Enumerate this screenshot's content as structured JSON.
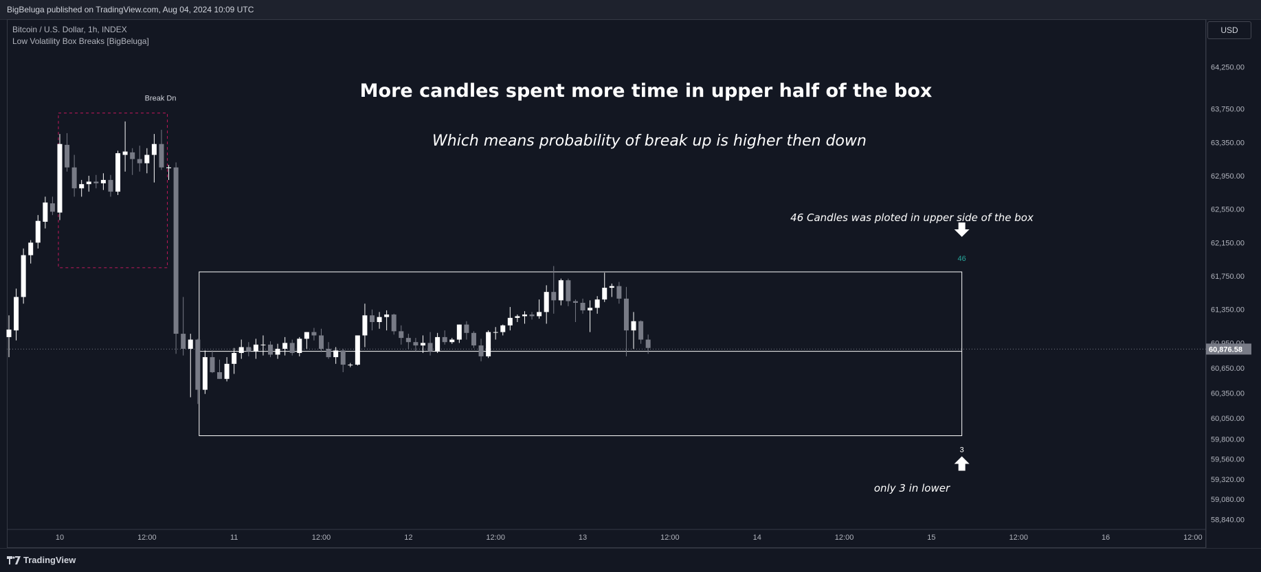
{
  "header": {
    "publisher": "BigBeluga published on TradingView.com, Aug 04, 2024 10:09 UTC"
  },
  "legend": {
    "symbol": "Bitcoin / U.S. Dollar, 1h, INDEX",
    "indicator": "Low Volatility Box Breaks [BigBeluga]"
  },
  "currency_button": "USD",
  "footer": {
    "logo_text": "TradingView"
  },
  "colors": {
    "bg": "#131722",
    "bull": "#ffffff",
    "bear": "#787b86",
    "dashed_box": "#c2185b",
    "count_up": "#26a69a"
  },
  "chart_data": {
    "type": "candlestick",
    "title": "",
    "y_axis": {
      "ylim": [
        58760,
        64560
      ],
      "tick_labels": [
        "64,250.00",
        "63,750.00",
        "63,350.00",
        "62,950.00",
        "62,550.00",
        "62,150.00",
        "61,750.00",
        "61,350.00",
        "60,950.00",
        "60,650.00",
        "60,350.00",
        "60,050.00",
        "59,800.00",
        "59,560.00",
        "59,320.00",
        "59,080.00",
        "58,840.00"
      ],
      "ticks": [
        64250,
        63750,
        63350,
        62950,
        62550,
        62150,
        61750,
        61350,
        60950,
        60650,
        60350,
        60050,
        59800,
        59560,
        59320,
        59080,
        58840
      ]
    },
    "x_axis": {
      "tick_labels": [
        "10",
        "12:00",
        "11",
        "12:00",
        "12",
        "12:00",
        "13",
        "12:00",
        "14",
        "12:00",
        "15",
        "12:00",
        "16",
        "12:00"
      ],
      "tick_bar_index": [
        7,
        19,
        31,
        43,
        55,
        67,
        79,
        91,
        103,
        115,
        127,
        139,
        151,
        163
      ]
    },
    "last_price": 60876.58,
    "last_price_label": "60,876.58",
    "candles": [
      [
        61020,
        61280,
        60780,
        61110
      ],
      [
        61100,
        61600,
        60980,
        61500
      ],
      [
        61500,
        62080,
        61420,
        62000
      ],
      [
        62000,
        62180,
        61900,
        62150
      ],
      [
        62150,
        62480,
        62080,
        62410
      ],
      [
        62400,
        62700,
        62320,
        62630
      ],
      [
        62620,
        62700,
        62480,
        62520
      ],
      [
        62510,
        63450,
        62420,
        63330
      ],
      [
        63320,
        63460,
        63000,
        63050
      ],
      [
        63050,
        63200,
        62700,
        62800
      ],
      [
        62800,
        62900,
        62700,
        62850
      ],
      [
        62850,
        62950,
        62760,
        62880
      ],
      [
        62880,
        62960,
        62800,
        62860
      ],
      [
        62860,
        62980,
        62780,
        62900
      ],
      [
        62900,
        62960,
        62700,
        62760
      ],
      [
        62760,
        63250,
        62720,
        63220
      ],
      [
        63200,
        63600,
        63000,
        63240
      ],
      [
        63230,
        63280,
        62960,
        63150
      ],
      [
        63150,
        63310,
        63000,
        63100
      ],
      [
        63100,
        63280,
        62980,
        63200
      ],
      [
        63200,
        63450,
        62870,
        63330
      ],
      [
        63330,
        63500,
        63020,
        63050
      ],
      [
        63040,
        63080,
        62900,
        63050
      ],
      [
        63050,
        63110,
        60820,
        61060
      ],
      [
        61060,
        61500,
        60800,
        60880
      ],
      [
        60880,
        61060,
        60300,
        60990
      ],
      [
        60990,
        61000,
        60220,
        60390
      ],
      [
        60390,
        60860,
        60340,
        60780
      ],
      [
        60780,
        60860,
        60590,
        60600
      ],
      [
        60600,
        60750,
        60520,
        60520
      ],
      [
        60520,
        60780,
        60490,
        60700
      ],
      [
        60700,
        60890,
        60580,
        60830
      ],
      [
        60830,
        60990,
        60760,
        60900
      ],
      [
        60900,
        60960,
        60790,
        60850
      ],
      [
        60850,
        61000,
        60760,
        60930
      ],
      [
        60930,
        61040,
        60800,
        60930
      ],
      [
        60930,
        60970,
        60780,
        60810
      ],
      [
        60810,
        60940,
        60760,
        60880
      ],
      [
        60880,
        61020,
        60800,
        60950
      ],
      [
        60950,
        60990,
        60800,
        60830
      ],
      [
        60830,
        61020,
        60790,
        61000
      ],
      [
        61000,
        61080,
        60880,
        61080
      ],
      [
        61080,
        61130,
        60980,
        61040
      ],
      [
        61040,
        61120,
        60840,
        60880
      ],
      [
        60880,
        60960,
        60760,
        60780
      ],
      [
        60780,
        60900,
        60700,
        60860
      ],
      [
        60860,
        60880,
        60600,
        60690
      ],
      [
        60690,
        60710,
        60660,
        60690
      ],
      [
        60690,
        61040,
        60680,
        61040
      ],
      [
        61040,
        61420,
        60900,
        61280
      ],
      [
        61280,
        61350,
        61100,
        61200
      ],
      [
        61200,
        61320,
        61120,
        61260
      ],
      [
        61260,
        61340,
        61100,
        61290
      ],
      [
        61290,
        61300,
        61050,
        61090
      ],
      [
        61090,
        61160,
        60930,
        61010
      ],
      [
        61010,
        61060,
        60880,
        60960
      ],
      [
        60960,
        61010,
        60850,
        60920
      ],
      [
        60920,
        61040,
        60830,
        60950
      ],
      [
        60950,
        61080,
        60800,
        60850
      ],
      [
        60850,
        61070,
        60830,
        61020
      ],
      [
        61020,
        61100,
        60930,
        60960
      ],
      [
        60960,
        61010,
        60940,
        60990
      ],
      [
        60990,
        61170,
        60950,
        61170
      ],
      [
        61170,
        61210,
        60990,
        61070
      ],
      [
        61070,
        61090,
        60890,
        60920
      ],
      [
        60920,
        61000,
        60730,
        60790
      ],
      [
        60790,
        61100,
        60770,
        61080
      ],
      [
        61080,
        61140,
        60990,
        61080
      ],
      [
        61080,
        61170,
        61040,
        61160
      ],
      [
        61160,
        61380,
        61100,
        61250
      ],
      [
        61250,
        61290,
        61200,
        61270
      ],
      [
        61270,
        61330,
        61180,
        61290
      ],
      [
        61290,
        61320,
        61230,
        61270
      ],
      [
        61270,
        61470,
        61240,
        61320
      ],
      [
        61320,
        61640,
        61180,
        61560
      ],
      [
        61560,
        61870,
        61300,
        61460
      ],
      [
        61460,
        61720,
        61400,
        61700
      ],
      [
        61700,
        61720,
        61390,
        61450
      ],
      [
        61450,
        61470,
        61200,
        61430
      ],
      [
        61430,
        61480,
        61300,
        61340
      ],
      [
        61340,
        61460,
        61080,
        61370
      ],
      [
        61370,
        61510,
        61300,
        61470
      ],
      [
        61470,
        61790,
        61440,
        61610
      ],
      [
        61610,
        61660,
        61500,
        61630
      ],
      [
        61630,
        61680,
        61420,
        61480
      ],
      [
        61480,
        61620,
        60790,
        61100
      ],
      [
        61100,
        61320,
        60880,
        61210
      ],
      [
        61210,
        61220,
        60940,
        60990
      ],
      [
        60990,
        61050,
        60820,
        60890
      ]
    ],
    "box_low_vol": {
      "top": 63700,
      "bottom": 61850,
      "start_bar": 7,
      "end_bar": 22,
      "label": "Break Dn"
    },
    "box_range": {
      "top": 61800,
      "mid": 60850,
      "bottom": 59840,
      "start_bar": 26,
      "end_bar": 131
    },
    "upper_count": "46",
    "lower_count": "3",
    "annotations": {
      "title": "More candles spent more time in upper half of the box",
      "subtitle": "Which means probability of break up is higher then down",
      "upper_note": "46 Candles was ploted in upper side of the box",
      "lower_note": "only 3 in lower"
    }
  }
}
